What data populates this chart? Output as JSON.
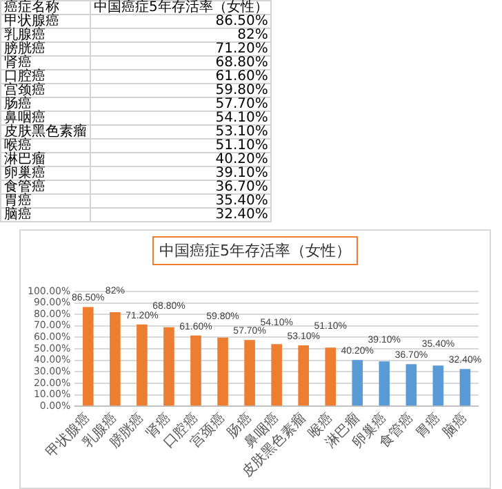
{
  "chart_data": {
    "type": "bar",
    "title": "中国癌症5年存活率（女性）",
    "categories": [
      "甲状腺癌",
      "乳腺癌",
      "膀胱癌",
      "肾癌",
      "口腔癌",
      "宫颈癌",
      "肠癌",
      "鼻咽癌",
      "皮肤黑色素瘤",
      "喉癌",
      "淋巴瘤",
      "卵巢癌",
      "食管癌",
      "胃癌",
      "脑癌"
    ],
    "values": [
      86.5,
      82,
      71.2,
      68.8,
      61.6,
      59.8,
      57.7,
      54.1,
      53.1,
      51.1,
      40.2,
      39.1,
      36.7,
      35.4,
      32.4
    ],
    "colors": [
      "#ed7d31",
      "#ed7d31",
      "#ed7d31",
      "#ed7d31",
      "#ed7d31",
      "#ed7d31",
      "#ed7d31",
      "#ed7d31",
      "#ed7d31",
      "#ed7d31",
      "#5b9bd5",
      "#5b9bd5",
      "#5b9bd5",
      "#5b9bd5",
      "#5b9bd5"
    ],
    "value_labels": [
      "86.50%",
      "82%",
      "71.20%",
      "68.80%",
      "61.60%",
      "59.80%",
      "57.70%",
      "54.10%",
      "53.10%",
      "51.10%",
      "40.20%",
      "39.10%",
      "36.70%",
      "35.40%",
      "32.40%"
    ],
    "ylim": [
      0,
      100
    ],
    "yticks": [
      {
        "value": 0,
        "label": "0.00%"
      },
      {
        "value": 10,
        "label": "10.00%"
      },
      {
        "value": 20,
        "label": "20.00%"
      },
      {
        "value": 30,
        "label": "30.00%"
      },
      {
        "value": 40,
        "label": "40.00%"
      },
      {
        "value": 50,
        "label": "50.00%"
      },
      {
        "value": 60,
        "label": "60.00%"
      },
      {
        "value": 70,
        "label": "70.00%"
      },
      {
        "value": 80,
        "label": "80.00%"
      },
      {
        "value": 90,
        "label": "90.00%"
      },
      {
        "value": 100,
        "label": "100.00%"
      }
    ],
    "grid": "y",
    "legend": false,
    "annotations": [
      "癌症名称"
    ]
  }
}
